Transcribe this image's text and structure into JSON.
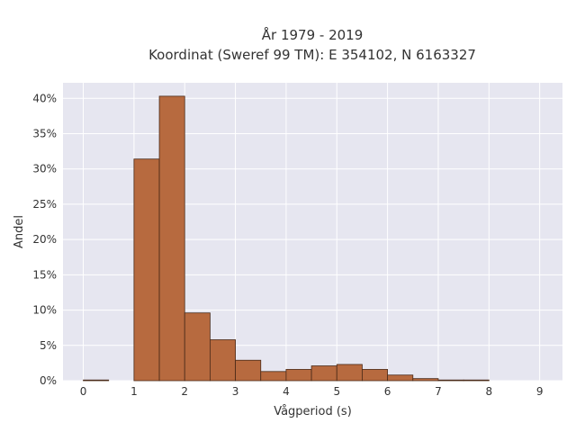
{
  "chart_data": {
    "type": "bar",
    "title_line1": "År 1979 - 2019",
    "title_line2": "Koordinat (Sweref 99 TM): E 354102, N 6163327",
    "xlabel": "Vågperiod (s)",
    "ylabel": "Andel",
    "bin_width": 0.5,
    "bins": [
      {
        "x0": 0.0,
        "value": 0.1
      },
      {
        "x0": 0.5,
        "value": 0.0
      },
      {
        "x0": 1.0,
        "value": 31.4
      },
      {
        "x0": 1.5,
        "value": 40.3
      },
      {
        "x0": 2.0,
        "value": 9.6
      },
      {
        "x0": 2.5,
        "value": 5.8
      },
      {
        "x0": 3.0,
        "value": 2.9
      },
      {
        "x0": 3.5,
        "value": 1.3
      },
      {
        "x0": 4.0,
        "value": 1.6
      },
      {
        "x0": 4.5,
        "value": 2.1
      },
      {
        "x0": 5.0,
        "value": 2.3
      },
      {
        "x0": 5.5,
        "value": 1.6
      },
      {
        "x0": 6.0,
        "value": 0.8
      },
      {
        "x0": 6.5,
        "value": 0.3
      },
      {
        "x0": 7.0,
        "value": 0.1
      },
      {
        "x0": 7.5,
        "value": 0.1
      }
    ],
    "xlim": [
      -0.4,
      9.45
    ],
    "ylim": [
      0,
      42.2
    ],
    "xticks": [
      0,
      1,
      2,
      3,
      4,
      5,
      6,
      7,
      8,
      9
    ],
    "xtick_labels": [
      "0",
      "1",
      "2",
      "3",
      "4",
      "5",
      "6",
      "7",
      "8",
      "9"
    ],
    "yticks": [
      0,
      5,
      10,
      15,
      20,
      25,
      30,
      35,
      40
    ],
    "ytick_labels": [
      "0%",
      "5%",
      "10%",
      "15%",
      "20%",
      "25%",
      "30%",
      "35%",
      "40%"
    ],
    "grid": true,
    "colors": {
      "bar_fill": "#b76a3f",
      "bar_stroke": "#4a2a18",
      "plot_bg": "#e6e6f0",
      "grid": "#ffffff"
    }
  }
}
